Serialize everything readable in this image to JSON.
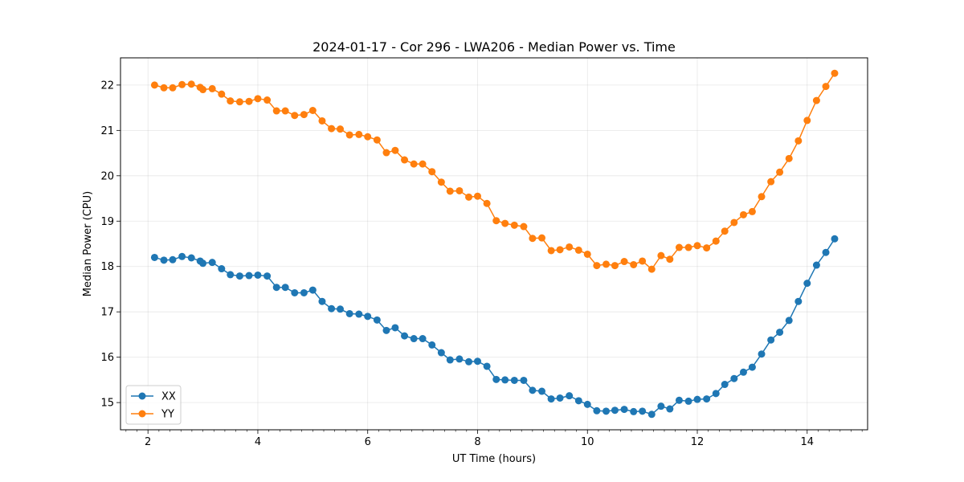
{
  "chart_data": {
    "type": "line",
    "title": "2024-01-17 - Cor 296 - LWA206 - Median Power vs. Time",
    "xlabel": "UT Time (hours)",
    "ylabel": "Median Power (CPU)",
    "xlim": [
      1.5,
      15.1
    ],
    "ylim": [
      14.4,
      22.6
    ],
    "xticks": [
      2,
      4,
      6,
      8,
      10,
      12,
      14
    ],
    "yticks": [
      15,
      16,
      17,
      18,
      19,
      20,
      21,
      22
    ],
    "xticks_minor": [
      1.6,
      1.8,
      2.0,
      2.2,
      2.4,
      2.6,
      2.8,
      3.0,
      3.2,
      3.4,
      3.6,
      3.8,
      4.0,
      4.2,
      4.4,
      4.6,
      4.8,
      5.0,
      5.2,
      5.4,
      5.6,
      5.8,
      6.0,
      6.2,
      6.4,
      6.6,
      6.8,
      7.0,
      7.2,
      7.4,
      7.6,
      7.8,
      8.0,
      8.2,
      8.4,
      8.6,
      8.8,
      9.0,
      9.2,
      9.4,
      9.6,
      9.8,
      10.0,
      10.2,
      10.4,
      10.6,
      10.8,
      11.0,
      11.2,
      11.4,
      11.6,
      11.8,
      12.0,
      12.2,
      12.4,
      12.6,
      12.8,
      13.0,
      13.2,
      13.4,
      13.6,
      13.8,
      14.0,
      14.2,
      14.4,
      14.6,
      14.8,
      15.0
    ],
    "grid": true,
    "legend_position": "lower-left",
    "series": [
      {
        "name": "XX",
        "color": "#1f77b4",
        "x": [
          2.12,
          2.29,
          2.45,
          2.62,
          2.79,
          2.95,
          3.0,
          3.17,
          3.34,
          3.5,
          3.67,
          3.84,
          4.0,
          4.17,
          4.34,
          4.5,
          4.67,
          4.84,
          5.0,
          5.17,
          5.34,
          5.5,
          5.67,
          5.84,
          6.0,
          6.17,
          6.34,
          6.5,
          6.67,
          6.84,
          7.0,
          7.17,
          7.34,
          7.5,
          7.67,
          7.84,
          8.0,
          8.17,
          8.34,
          8.5,
          8.67,
          8.84,
          9.0,
          9.17,
          9.34,
          9.5,
          9.67,
          9.84,
          10.0,
          10.17,
          10.34,
          10.5,
          10.67,
          10.84,
          11.0,
          11.17,
          11.34,
          11.5,
          11.67,
          11.84,
          12.0,
          12.17,
          12.34,
          12.5,
          12.67,
          12.84,
          13.0,
          13.17,
          13.34,
          13.5,
          13.67,
          13.84,
          14.0,
          14.17,
          14.34,
          14.5
        ],
        "y": [
          18.2,
          18.14,
          18.15,
          18.22,
          18.19,
          18.12,
          18.07,
          18.09,
          17.95,
          17.82,
          17.79,
          17.8,
          17.81,
          17.79,
          17.54,
          17.54,
          17.42,
          17.42,
          17.48,
          17.23,
          17.07,
          17.06,
          16.96,
          16.95,
          16.9,
          16.82,
          16.59,
          16.65,
          16.47,
          16.41,
          16.41,
          16.27,
          16.1,
          15.94,
          15.96,
          15.9,
          15.91,
          15.8,
          15.51,
          15.5,
          15.49,
          15.49,
          15.27,
          15.25,
          15.08,
          15.1,
          15.15,
          15.04,
          14.96,
          14.82,
          14.81,
          14.83,
          14.85,
          14.8,
          14.81,
          14.74,
          14.92,
          14.86,
          15.05,
          15.03,
          15.07,
          15.08,
          15.2,
          15.4,
          15.53,
          15.67,
          15.78,
          16.07,
          16.38,
          16.55,
          16.81,
          17.23,
          17.63,
          18.03,
          18.31,
          18.61
        ]
      },
      {
        "name": "YY",
        "color": "#ff7f0e",
        "x": [
          2.12,
          2.29,
          2.45,
          2.62,
          2.79,
          2.95,
          3.0,
          3.17,
          3.34,
          3.5,
          3.67,
          3.84,
          4.0,
          4.17,
          4.34,
          4.5,
          4.67,
          4.84,
          5.0,
          5.17,
          5.34,
          5.5,
          5.67,
          5.84,
          6.0,
          6.17,
          6.34,
          6.5,
          6.67,
          6.84,
          7.0,
          7.17,
          7.34,
          7.5,
          7.67,
          7.84,
          8.0,
          8.17,
          8.34,
          8.5,
          8.67,
          8.84,
          9.0,
          9.17,
          9.34,
          9.5,
          9.67,
          9.84,
          10.0,
          10.17,
          10.34,
          10.5,
          10.67,
          10.84,
          11.0,
          11.17,
          11.34,
          11.5,
          11.67,
          11.84,
          12.0,
          12.17,
          12.34,
          12.5,
          12.67,
          12.84,
          13.0,
          13.17,
          13.34,
          13.5,
          13.67,
          13.84,
          14.0,
          14.17,
          14.34,
          14.5
        ],
        "y": [
          22.0,
          21.94,
          21.94,
          22.01,
          22.02,
          21.95,
          21.9,
          21.92,
          21.8,
          21.65,
          21.63,
          21.64,
          21.7,
          21.67,
          21.43,
          21.43,
          21.33,
          21.35,
          21.44,
          21.21,
          21.04,
          21.03,
          20.9,
          20.91,
          20.86,
          20.79,
          20.51,
          20.56,
          20.35,
          20.26,
          20.26,
          20.09,
          19.86,
          19.66,
          19.67,
          19.53,
          19.55,
          19.39,
          19.01,
          18.95,
          18.91,
          18.88,
          18.62,
          18.63,
          18.35,
          18.37,
          18.43,
          18.36,
          18.27,
          18.02,
          18.05,
          18.02,
          18.11,
          18.04,
          18.12,
          17.94,
          18.24,
          18.16,
          18.42,
          18.42,
          18.46,
          18.41,
          18.56,
          18.78,
          18.97,
          19.14,
          19.21,
          19.54,
          19.87,
          20.08,
          20.38,
          20.77,
          21.22,
          21.66,
          21.97,
          22.26
        ]
      }
    ]
  }
}
